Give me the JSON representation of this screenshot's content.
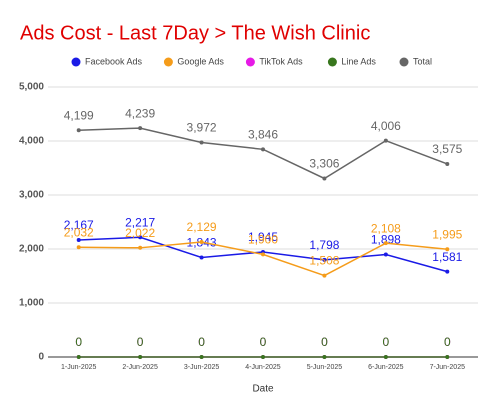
{
  "chart_data": {
    "type": "line",
    "title": "Ads Cost - Last 7Day > The Wish Clinic",
    "x_label": "Date",
    "categories": [
      "1-Jun-2025",
      "2-Jun-2025",
      "3-Jun-2025",
      "4-Jun-2025",
      "5-Jun-2025",
      "6-Jun-2025",
      "7-Jun-2025"
    ],
    "series": [
      {
        "name": "Facebook Ads",
        "color": "#1a1ae6",
        "values": [
          2167,
          2217,
          1843,
          1945,
          1798,
          1898,
          1581
        ],
        "value_labels": [
          "2,167",
          "2,217",
          "1,843",
          "1,945",
          "1,798",
          "1,898",
          "1,581"
        ]
      },
      {
        "name": "Google Ads",
        "color": "#f59c1a",
        "values": [
          2032,
          2022,
          2129,
          1900,
          1508,
          2108,
          1995
        ],
        "value_labels": [
          "2,032",
          "2,022",
          "2,129",
          "1,900",
          "1,508",
          "2,108",
          "1,995"
        ]
      },
      {
        "name": "TikTok Ads",
        "color": "#e61ae6",
        "values": [
          0,
          0,
          0,
          0,
          0,
          0,
          0
        ]
      },
      {
        "name": "Line Ads",
        "color": "#38761d",
        "values": [
          0,
          0,
          0,
          0,
          0,
          0,
          0
        ]
      },
      {
        "name": "Total",
        "color": "#666666",
        "values": [
          4199,
          4239,
          3972,
          3846,
          3306,
          4006,
          3575
        ],
        "value_labels": [
          "4,199",
          "4,239",
          "3,972",
          "3,846",
          "3,306",
          "4,006",
          "3,575"
        ]
      }
    ],
    "ylim": [
      0,
      5000
    ],
    "yticks": [
      0,
      {
        "value": 1000,
        "label": "1,000"
      },
      {
        "value": 2000,
        "label": "2,000"
      },
      {
        "value": 3000,
        "label": "3,000"
      },
      {
        "value": 4000,
        "label": "4,000"
      },
      {
        "value": 5000,
        "label": "5,000"
      }
    ],
    "grid": true,
    "legend": "top"
  }
}
